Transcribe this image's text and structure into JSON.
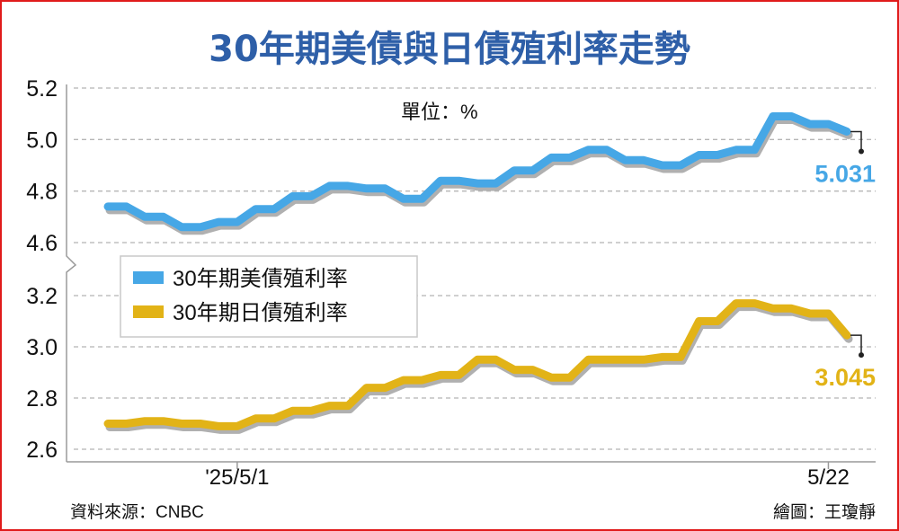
{
  "chart_data": {
    "type": "line",
    "title": "30年期美債與日債殖利率走勢",
    "unit_label": "單位：%",
    "source": "資料來源：CNBC",
    "credit": "繪圖：王瓊靜",
    "x_tick_labels": [
      {
        "label": "'25/5/1",
        "index": 7
      },
      {
        "label": "5/22",
        "index": 39
      }
    ],
    "y_upper": {
      "range": [
        4.6,
        5.2
      ],
      "ticks": [
        "4.6",
        "4.8",
        "5.0",
        "5.2"
      ]
    },
    "y_lower": {
      "range": [
        2.6,
        3.2
      ],
      "ticks": [
        "2.6",
        "2.8",
        "3.0",
        "3.2"
      ]
    },
    "axis_break": true,
    "grid": true,
    "legend_position": "left-middle",
    "colors": {
      "us": "#46a7e6",
      "jp": "#e2b317",
      "title": "#2e5fa8",
      "frame": "#e01b1b",
      "grid": "#b5b5b5"
    },
    "series": [
      {
        "name": "30年期美債殖利率",
        "panel": "upper",
        "color": "#46a7e6",
        "last_label": "5.031",
        "values": [
          4.74,
          4.74,
          4.7,
          4.7,
          4.66,
          4.66,
          4.68,
          4.68,
          4.73,
          4.73,
          4.78,
          4.78,
          4.82,
          4.82,
          4.81,
          4.81,
          4.77,
          4.77,
          4.84,
          4.84,
          4.83,
          4.83,
          4.88,
          4.88,
          4.93,
          4.93,
          4.96,
          4.96,
          4.92,
          4.92,
          4.9,
          4.9,
          4.94,
          4.94,
          4.96,
          4.96,
          5.09,
          5.09,
          5.06,
          5.06,
          5.031
        ]
      },
      {
        "name": "30年期日債殖利率",
        "panel": "lower",
        "color": "#e2b317",
        "last_label": "3.045",
        "values": [
          2.7,
          2.7,
          2.71,
          2.71,
          2.7,
          2.7,
          2.69,
          2.69,
          2.72,
          2.72,
          2.75,
          2.75,
          2.77,
          2.77,
          2.84,
          2.84,
          2.87,
          2.87,
          2.89,
          2.89,
          2.95,
          2.95,
          2.91,
          2.91,
          2.88,
          2.88,
          2.95,
          2.95,
          2.95,
          2.95,
          2.96,
          2.96,
          3.1,
          3.1,
          3.17,
          3.17,
          3.15,
          3.15,
          3.13,
          3.13,
          3.045
        ]
      }
    ]
  }
}
